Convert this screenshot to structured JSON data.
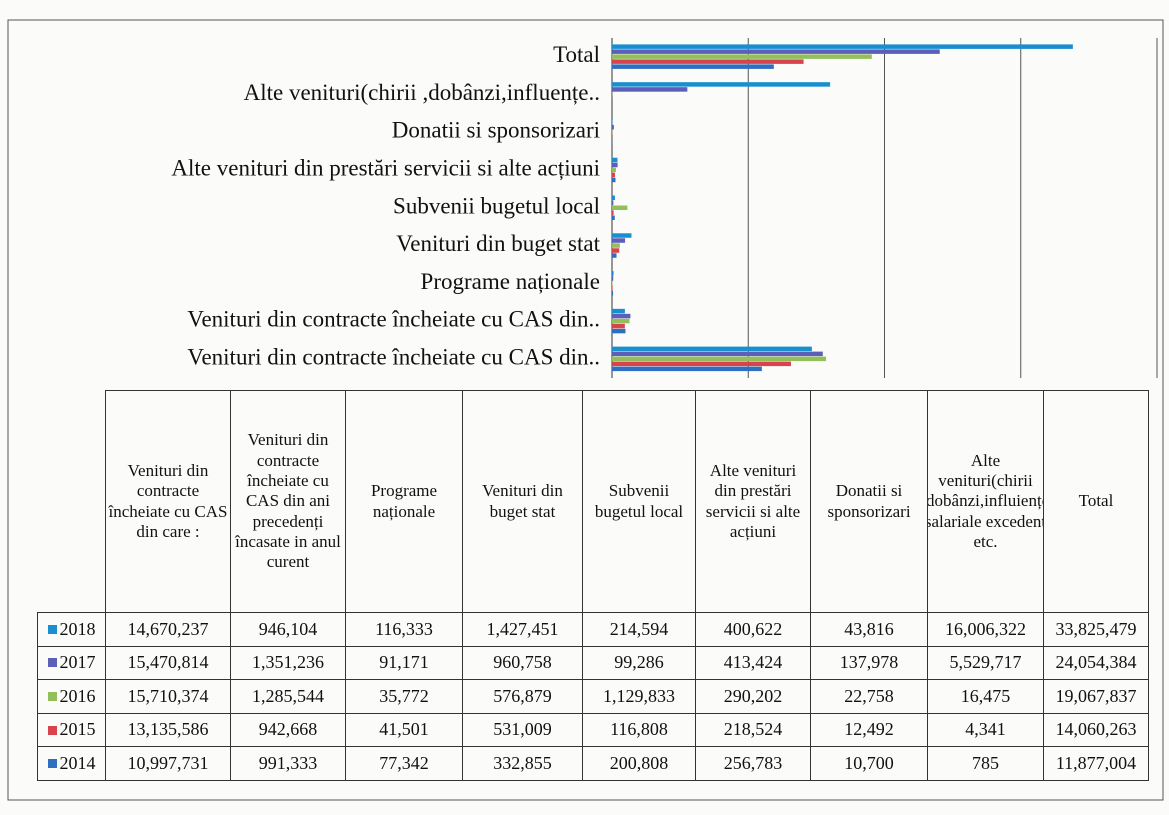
{
  "chart_data": {
    "type": "hbar",
    "categories": [
      "Venituri din contracte încheiate cu CAS din..",
      "Venituri din contracte încheiate cu CAS din..",
      "Programe naționale",
      "Venituri din buget stat",
      "Subvenii bugetul local",
      "Alte venituri din prestări servicii si alte acțiuni",
      "Donatii si sponsorizari",
      "Alte venituri(chirii ,dobânzi,influențe..",
      "Total"
    ],
    "table_headers": [
      "Venituri din contracte încheiate cu CAS din care :",
      "Venituri din contracte încheiate cu CAS din ani precedenți încasate in anul curent",
      "Programe naționale",
      "Venituri din buget stat",
      "Subvenii bugetul local",
      "Alte venituri din prestări servicii si alte acțiuni",
      "Donatii si sponsorizari",
      "Alte venituri(chirii ,dobânzi,influiențe salariale excedent etc.",
      "Total"
    ],
    "xlim": [
      0,
      40000000
    ],
    "xticks": [
      0,
      10000000,
      20000000,
      30000000,
      40000000
    ],
    "grid": true,
    "series": [
      {
        "name": "2018",
        "color": "#1a8fd0",
        "values": [
          14670237,
          946104,
          116333,
          1427451,
          214594,
          400622,
          43816,
          16006322,
          33825479
        ],
        "value_labels": [
          "14,670,237",
          "946,104",
          "116,333",
          "1,427,451",
          "214,594",
          "400,622",
          "43,816",
          "16,006,322",
          "33,825,479"
        ]
      },
      {
        "name": "2017",
        "color": "#5b5fb8",
        "values": [
          15470814,
          1351236,
          91171,
          960758,
          99286,
          413424,
          137978,
          5529717,
          24054384
        ],
        "value_labels": [
          "15,470,814",
          "1,351,236",
          "91,171",
          "960,758",
          "99,286",
          "413,424",
          "137,978",
          "5,529,717",
          "24,054,384"
        ]
      },
      {
        "name": "2016",
        "color": "#92bf5a",
        "values": [
          15710374,
          1285544,
          35772,
          576879,
          1129833,
          290202,
          22758,
          16475,
          19067837
        ],
        "value_labels": [
          "15,710,374",
          "1,285,544",
          "35,772",
          "576,879",
          "1,129,833",
          "290,202",
          "22,758",
          "16,475",
          "19,067,837"
        ]
      },
      {
        "name": "2015",
        "color": "#d9434e",
        "values": [
          13135586,
          942668,
          41501,
          531009,
          116808,
          218524,
          12492,
          4341,
          14060263
        ],
        "value_labels": [
          "13,135,586",
          "942,668",
          "41,501",
          "531,009",
          "116,808",
          "218,524",
          "12,492",
          "4,341",
          "14,060,263"
        ]
      },
      {
        "name": "2014",
        "color": "#2f6fbf",
        "values": [
          10997731,
          991333,
          77342,
          332855,
          200808,
          256783,
          10700,
          785,
          11877004
        ],
        "value_labels": [
          "10,997,731",
          "991,333",
          "77,342",
          "332,855",
          "200,808",
          "256,783",
          "10,700",
          "785",
          "11,877,004"
        ]
      }
    ]
  }
}
